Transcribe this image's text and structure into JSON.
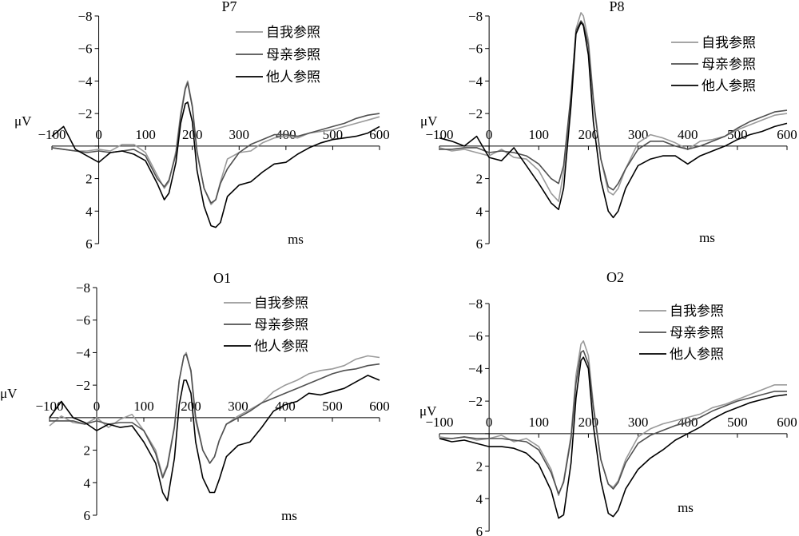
{
  "colors": {
    "self": "#9a9a9a",
    "mother": "#505050",
    "other": "#000000",
    "axis": "#000000"
  },
  "chart_data": [
    {
      "type": "line",
      "title": "P7",
      "xlabel": "ms",
      "ylabel": "μV",
      "xlim": [
        -100,
        600
      ],
      "ylim": [
        -8,
        6
      ],
      "y_inverted": true,
      "xticks": [
        "-100",
        "0",
        "100",
        "200",
        "300",
        "400",
        "500",
        "600"
      ],
      "yticks": [
        "-8",
        "-6",
        "-4",
        "-2",
        "0",
        "2",
        "4",
        "6"
      ],
      "legend": [
        "自我参照",
        "母亲参照",
        "他人参照"
      ],
      "x": [
        -100,
        -75,
        -50,
        -25,
        0,
        25,
        50,
        75,
        100,
        125,
        140,
        150,
        165,
        175,
        185,
        190,
        200,
        210,
        225,
        240,
        250,
        260,
        275,
        300,
        325,
        350,
        375,
        400,
        425,
        450,
        475,
        500,
        525,
        550,
        575,
        600
      ],
      "series": [
        {
          "name": "自我参照",
          "values": [
            0.1,
            0.2,
            0.3,
            0.3,
            0.2,
            0.3,
            -0.1,
            -0.1,
            0.4,
            1.8,
            2.6,
            2.2,
            0.3,
            -2.0,
            -3.6,
            -4.0,
            -2.5,
            0.3,
            2.6,
            3.6,
            3.3,
            2.2,
            0.8,
            0.4,
            0.3,
            -0.2,
            -0.5,
            -0.6,
            -0.5,
            -0.8,
            -0.9,
            -1.0,
            -1.2,
            -1.4,
            -1.6,
            -1.8
          ]
        },
        {
          "name": "母亲参照",
          "values": [
            0.1,
            0.2,
            0.3,
            0.4,
            0.3,
            0.4,
            0.3,
            0.2,
            0.6,
            2.0,
            2.5,
            2.1,
            0.5,
            -1.8,
            -3.5,
            -3.9,
            -2.4,
            0.4,
            2.6,
            3.5,
            3.3,
            2.3,
            1.4,
            0.4,
            -0.1,
            -0.4,
            -0.7,
            -0.7,
            -0.6,
            -0.8,
            -1.0,
            -1.2,
            -1.4,
            -1.7,
            -1.9,
            -2.0
          ]
        },
        {
          "name": "他人参照",
          "values": [
            -0.6,
            -1.2,
            0.2,
            0.6,
            1.0,
            0.4,
            0.3,
            0.5,
            0.9,
            2.3,
            3.3,
            2.9,
            1.0,
            -1.4,
            -2.6,
            -2.7,
            -1.5,
            1.5,
            3.7,
            4.9,
            5.0,
            4.7,
            3.1,
            2.4,
            2.2,
            1.6,
            1.1,
            1.0,
            0.5,
            0.1,
            -0.2,
            -0.4,
            -0.5,
            -0.6,
            -0.8,
            -1.2
          ]
        }
      ]
    },
    {
      "type": "line",
      "title": "P8",
      "xlabel": "ms",
      "ylabel": "μV",
      "xlim": [
        -100,
        600
      ],
      "ylim": [
        -8,
        6
      ],
      "y_inverted": true,
      "xticks": [
        "-100",
        "0",
        "100",
        "200",
        "300",
        "400",
        "500",
        "600"
      ],
      "yticks": [
        "-8",
        "-6",
        "-4",
        "-2",
        "0",
        "2",
        "4",
        "6"
      ],
      "legend": [
        "自我参照",
        "母亲参照",
        "他人参照"
      ],
      "x": [
        -100,
        -75,
        -50,
        -25,
        0,
        25,
        50,
        75,
        100,
        125,
        140,
        150,
        165,
        175,
        185,
        190,
        200,
        210,
        225,
        240,
        250,
        260,
        275,
        300,
        325,
        350,
        375,
        400,
        425,
        450,
        475,
        500,
        525,
        550,
        575,
        600
      ],
      "series": [
        {
          "name": "自我参照",
          "values": [
            0.1,
            0.3,
            0.2,
            0.4,
            0.6,
            0.2,
            0.7,
            0.8,
            1.5,
            2.9,
            3.4,
            1.6,
            -3.0,
            -7.2,
            -8.2,
            -8.0,
            -6.5,
            -3.0,
            0.8,
            2.8,
            3.0,
            2.6,
            1.4,
            -0.2,
            -0.7,
            -0.5,
            -0.2,
            0.2,
            -0.3,
            -0.4,
            -0.6,
            -1.0,
            -1.3,
            -1.6,
            -1.9,
            -2.0
          ]
        },
        {
          "name": "母亲参照",
          "values": [
            0.2,
            0.2,
            0.1,
            0.1,
            0.4,
            0.3,
            0.4,
            0.6,
            1.1,
            2.0,
            2.3,
            1.2,
            -3.2,
            -7.1,
            -7.7,
            -7.5,
            -6.2,
            -2.8,
            0.8,
            2.5,
            2.7,
            2.3,
            1.4,
            0.2,
            -0.3,
            -0.3,
            0.0,
            0.2,
            0.0,
            -0.3,
            -0.6,
            -1.1,
            -1.5,
            -1.8,
            -2.1,
            -2.2
          ]
        },
        {
          "name": "他人参照",
          "values": [
            -0.5,
            -0.3,
            0.0,
            -0.6,
            0.7,
            0.9,
            0.1,
            1.2,
            2.3,
            3.5,
            3.9,
            2.6,
            -2.5,
            -6.9,
            -7.6,
            -7.4,
            -5.6,
            -1.5,
            2.1,
            4.0,
            4.4,
            4.0,
            2.6,
            1.2,
            0.8,
            0.6,
            0.6,
            1.1,
            0.6,
            0.3,
            0.0,
            -0.4,
            -0.7,
            -0.9,
            -1.2,
            -1.4
          ]
        }
      ]
    },
    {
      "type": "line",
      "title": "O1",
      "xlabel": "ms",
      "ylabel": "μV",
      "xlim": [
        -100,
        600
      ],
      "ylim": [
        -8,
        6
      ],
      "y_inverted": true,
      "xticks": [
        "-100",
        "0",
        "100",
        "200",
        "300",
        "400",
        "500",
        "600"
      ],
      "yticks": [
        "-8",
        "-6",
        "-4",
        "-2",
        "0",
        "2",
        "4",
        "6"
      ],
      "legend": [
        "自我参照",
        "母亲参照",
        "他人参照"
      ],
      "x": [
        -100,
        -75,
        -50,
        -25,
        0,
        25,
        50,
        75,
        100,
        125,
        140,
        150,
        165,
        175,
        185,
        190,
        200,
        210,
        225,
        240,
        250,
        260,
        275,
        300,
        325,
        350,
        375,
        400,
        425,
        450,
        475,
        500,
        525,
        550,
        575,
        600
      ],
      "series": [
        {
          "name": "自我参照",
          "values": [
            0.5,
            -0.1,
            0.3,
            0.4,
            0.0,
            0.6,
            0.1,
            -0.2,
            0.8,
            2.0,
            3.6,
            2.9,
            0.5,
            -2.3,
            -3.8,
            -4.0,
            -2.8,
            0.2,
            2.0,
            2.8,
            2.4,
            1.4,
            0.4,
            -0.1,
            -0.5,
            -0.9,
            -1.6,
            -2.0,
            -2.3,
            -2.7,
            -2.9,
            -3.0,
            -3.2,
            -3.6,
            -3.8,
            -3.7
          ]
        },
        {
          "name": "母亲参照",
          "values": [
            0.2,
            0.2,
            0.2,
            0.4,
            0.2,
            0.4,
            0.3,
            0.3,
            0.8,
            2.2,
            3.7,
            3.0,
            0.6,
            -2.3,
            -3.8,
            -3.9,
            -2.9,
            0.0,
            2.0,
            2.8,
            2.4,
            1.4,
            0.4,
            0.0,
            -0.4,
            -0.9,
            -1.2,
            -1.5,
            -1.8,
            -2.1,
            -2.4,
            -2.7,
            -2.9,
            -3.0,
            -3.2,
            -3.3
          ]
        },
        {
          "name": "他人参照",
          "values": [
            0.0,
            -1.0,
            0.0,
            0.3,
            0.8,
            0.4,
            0.6,
            0.5,
            1.5,
            2.8,
            4.6,
            5.1,
            2.5,
            -0.8,
            -2.3,
            -2.3,
            -1.5,
            1.5,
            3.7,
            4.6,
            4.6,
            3.8,
            2.4,
            1.7,
            1.5,
            0.6,
            -0.4,
            -0.8,
            -1.0,
            -1.5,
            -1.4,
            -1.6,
            -1.8,
            -2.2,
            -2.6,
            -2.3
          ]
        }
      ]
    },
    {
      "type": "line",
      "title": "O2",
      "xlabel": "ms",
      "ylabel": "μV",
      "xlim": [
        -100,
        600
      ],
      "ylim": [
        -8,
        6
      ],
      "y_inverted": true,
      "xticks": [
        "-100",
        "0",
        "100",
        "200",
        "300",
        "400",
        "500",
        "600"
      ],
      "yticks": [
        "-8",
        "-6",
        "-4",
        "-2",
        "0",
        "2",
        "4",
        "6"
      ],
      "legend": [
        "自我参照",
        "母亲参照",
        "他人参照"
      ],
      "x": [
        -100,
        -75,
        -50,
        -25,
        0,
        25,
        50,
        75,
        100,
        125,
        140,
        150,
        165,
        175,
        185,
        190,
        200,
        210,
        225,
        240,
        250,
        260,
        275,
        300,
        325,
        350,
        375,
        400,
        425,
        450,
        475,
        500,
        525,
        550,
        575,
        600
      ],
      "series": [
        {
          "name": "自我参照",
          "values": [
            0.2,
            0.3,
            0.2,
            0.4,
            0.3,
            0.1,
            0.5,
            0.3,
            0.8,
            2.2,
            3.8,
            2.9,
            0.1,
            -3.6,
            -5.5,
            -5.7,
            -4.8,
            -1.8,
            1.6,
            3.1,
            3.3,
            2.9,
            1.6,
            0.2,
            -0.3,
            -0.6,
            -0.8,
            -1.0,
            -1.2,
            -1.6,
            -1.8,
            -2.1,
            -2.4,
            -2.7,
            -3.0,
            -3.0
          ]
        },
        {
          "name": "母亲参照",
          "values": [
            0.3,
            0.3,
            0.2,
            0.3,
            0.3,
            0.3,
            0.4,
            0.5,
            1.0,
            2.4,
            3.7,
            3.0,
            0.3,
            -3.1,
            -5.0,
            -5.1,
            -4.3,
            -1.6,
            1.6,
            3.1,
            3.4,
            3.0,
            1.8,
            0.6,
            0.1,
            -0.2,
            -0.5,
            -0.7,
            -1.0,
            -1.4,
            -1.7,
            -2.0,
            -2.2,
            -2.4,
            -2.6,
            -2.6
          ]
        },
        {
          "name": "他人参照",
          "values": [
            0.3,
            0.5,
            0.4,
            0.6,
            0.8,
            0.8,
            0.9,
            1.2,
            1.9,
            3.5,
            5.2,
            5.0,
            1.8,
            -2.2,
            -4.5,
            -4.7,
            -4.0,
            -0.5,
            2.9,
            4.9,
            5.1,
            4.7,
            3.4,
            2.2,
            1.5,
            1.0,
            0.4,
            0.0,
            -0.4,
            -0.9,
            -1.3,
            -1.6,
            -1.9,
            -2.1,
            -2.3,
            -2.4
          ]
        }
      ]
    }
  ]
}
